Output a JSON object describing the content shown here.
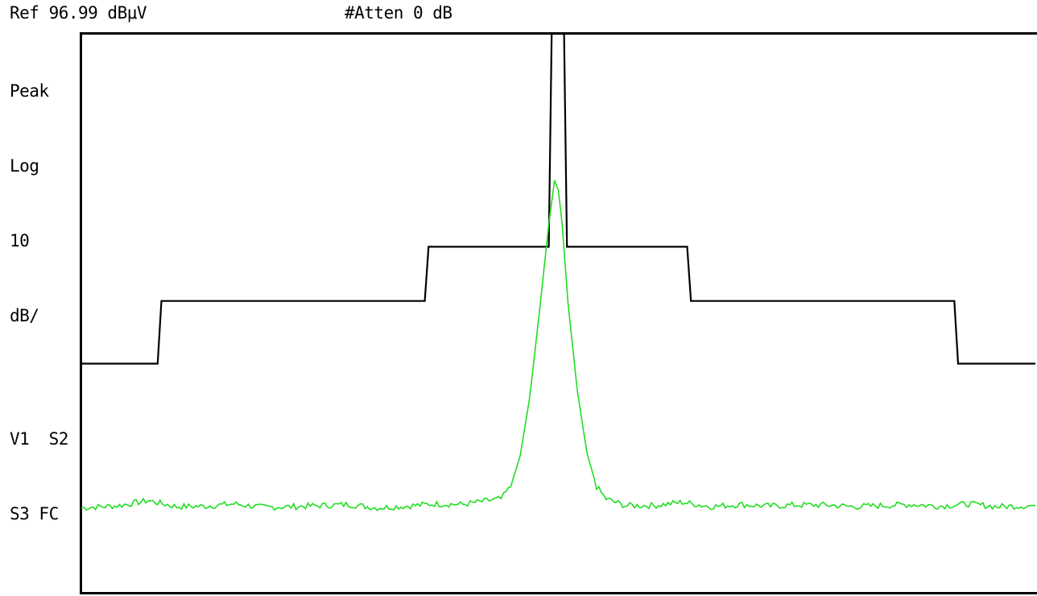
{
  "header": {
    "ref_level": "Ref 96.99 dBμV",
    "attenuation": "#Atten 0 dB"
  },
  "side_annotations": {
    "detector": "Peak",
    "scale_type": "Log",
    "scale_value": "10",
    "scale_unit": "dB/",
    "status_line1": "V1  S2",
    "status_line2": "S3 FC"
  },
  "colors": {
    "background": "#ffffff",
    "graticule": "#000000",
    "limit_line": "#000000",
    "trace": "#22dd22"
  },
  "chart_data": {
    "type": "line",
    "display": {
      "ref_level_dBuV": 96.99,
      "scale_dB_per_div": 10,
      "divisions": 10,
      "grid": false
    },
    "limit_line": {
      "name": "",
      "x": [
        0,
        8,
        8.4,
        36,
        36.4,
        49,
        49.3,
        50.6,
        50.9,
        63.5,
        63.9,
        91.5,
        91.9,
        100
      ],
      "y": [
        41,
        41,
        52.2,
        52.2,
        61.9,
        61.9,
        100,
        100,
        61.9,
        61.9,
        52.2,
        52.2,
        41,
        41
      ]
    },
    "trace": {
      "name": "",
      "x": [
        0,
        4,
        7,
        10,
        13,
        16,
        19,
        22,
        25,
        28,
        31,
        34,
        37,
        40,
        43,
        44,
        45,
        46,
        47,
        48,
        49,
        49.6,
        50,
        50.4,
        51,
        52,
        53,
        54,
        55,
        56,
        57,
        60,
        63,
        66,
        69,
        72,
        75,
        78,
        81,
        84,
        87,
        90,
        93,
        96,
        100
      ],
      "y": [
        15.2,
        15.6,
        16.5,
        15.4,
        15.5,
        15.9,
        15.3,
        15.4,
        15.6,
        15.8,
        15.2,
        15.5,
        15.9,
        15.8,
        16.6,
        16.8,
        19,
        24.5,
        35,
        50,
        66,
        73.8,
        72,
        66,
        52,
        36,
        25,
        19,
        16.8,
        16.2,
        15.6,
        15.6,
        16.2,
        15.4,
        15.8,
        15.5,
        15.7,
        15.7,
        15.4,
        15.6,
        15.8,
        15.5,
        15.9,
        15.4,
        15.6
      ]
    }
  }
}
